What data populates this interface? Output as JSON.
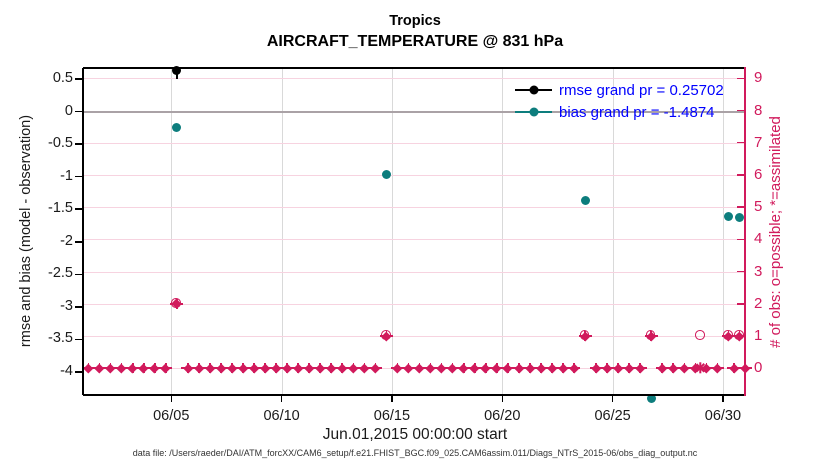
{
  "figure": {
    "title_line1": "Tropics",
    "title_line2": "AIRCRAFT_TEMPERATURE @ 831 hPa",
    "xlabel": "Jun.01,2015 00:00:00 start",
    "ylabel_left": "rmse and bias (model - observation)",
    "ylabel_right": "# of obs: o=possible; *=assimilated",
    "caption": "data file: /Users/raeder/DAI/ATM_forcXX/CAM6_setup/f.e21.FHIST_BGC.f09_025.CAM6assim.011/Diags_NTrS_2015-06/obs_diag_output.nc"
  },
  "legend": [
    {
      "label": "rmse grand pr = 0.25702",
      "color": "#000000"
    },
    {
      "label": "bias grand pr = -1.4874",
      "color": "#0d7d7d"
    }
  ],
  "colors": {
    "rmse": "#000000",
    "bias": "#0d7d7d",
    "obs_pink": "#d11a5c",
    "legend_text": "#0000ff",
    "zero_line": "#aaa2a6",
    "grid_horizontal": "#f7d3e0",
    "grid_vertical": "#d9d9d9",
    "tick_label": "#1a1a1a",
    "caption": "#333333"
  },
  "chart_data": {
    "type": "scatter",
    "title": "Tropics — AIRCRAFT_TEMPERATURE @ 831 hPa",
    "x_axis": {
      "label": "Jun.01,2015 00:00:00 start",
      "lim_days_after_jun1_2015": [
        0,
        30
      ],
      "ticks": [
        {
          "day": 4,
          "label": "06/05"
        },
        {
          "day": 9,
          "label": "06/10"
        },
        {
          "day": 14,
          "label": "06/15"
        },
        {
          "day": 19,
          "label": "06/20"
        },
        {
          "day": 24,
          "label": "06/25"
        },
        {
          "day": 29,
          "label": "06/30"
        }
      ]
    },
    "y_left": {
      "label": "rmse and bias (model - observation)",
      "lim": [
        -4.353,
        0.669
      ],
      "ticks": [
        0.5,
        0,
        -0.5,
        -1,
        -1.5,
        -2,
        -2.5,
        -3,
        -3.5,
        -4
      ]
    },
    "y_right": {
      "label": "# of obs: o=possible; *=assimilated",
      "lim": [
        -0.835,
        9.32
      ],
      "ticks": [
        9,
        8,
        7,
        6,
        5,
        4,
        3,
        2,
        1,
        0
      ]
    },
    "zero_reference_line": 0,
    "grid": {
      "vertical_at_date_ticks": true,
      "horizontal_at_right_integers": true
    },
    "legend_position": "top-right-inside, no box",
    "series": [
      {
        "name": "rmse",
        "legend": "rmse grand pr = 0.25702",
        "grand_pr": 0.25702,
        "axis": "left",
        "marker": "filled-circle",
        "points": [
          {
            "day": 4.25,
            "value": 0.63
          }
        ]
      },
      {
        "name": "bias",
        "legend": "bias grand pr = -1.4874",
        "grand_pr": -1.4874,
        "axis": "left",
        "marker": "filled-circle",
        "points": [
          {
            "day": 4.25,
            "value": -0.25
          },
          {
            "day": 13.75,
            "value": -0.96
          },
          {
            "day": 22.75,
            "value": -1.36
          },
          {
            "day": 25.75,
            "value": -4.4
          },
          {
            "day": 29.25,
            "value": -1.61
          },
          {
            "day": 29.75,
            "value": -1.63
          }
        ]
      },
      {
        "name": "obs_counts",
        "axis": "right",
        "marker": "o=possible (open circle), *=assimilated (asterisk); overlap renders as filled diamond-star",
        "points": [
          {
            "day": 4.25,
            "possible": 2,
            "assimilated": 2
          },
          {
            "day": 13.75,
            "possible": 1,
            "assimilated": 1
          },
          {
            "day": 22.75,
            "possible": 1,
            "assimilated": 1
          },
          {
            "day": 25.75,
            "possible": 1,
            "assimilated": 1
          },
          {
            "day": 28.0,
            "possible": 1,
            "assimilated": 0
          },
          {
            "day": 29.25,
            "possible": 1,
            "assimilated": 1
          },
          {
            "day": 29.75,
            "possible": 1,
            "assimilated": 1
          }
        ]
      },
      {
        "name": "obs_zero_row",
        "axis": "right",
        "value": 0,
        "note": "possible=0 & assimilated=0 markers every 12 h across the month",
        "grid_times": {
          "start": 0.25,
          "step": 0.5,
          "end": 29.75,
          "extra": [
            29.5,
            30.0
          ],
          "skip_days": [
            4.25,
            13.75,
            22.75,
            25.75,
            29.25,
            29.75
          ]
        }
      }
    ]
  }
}
